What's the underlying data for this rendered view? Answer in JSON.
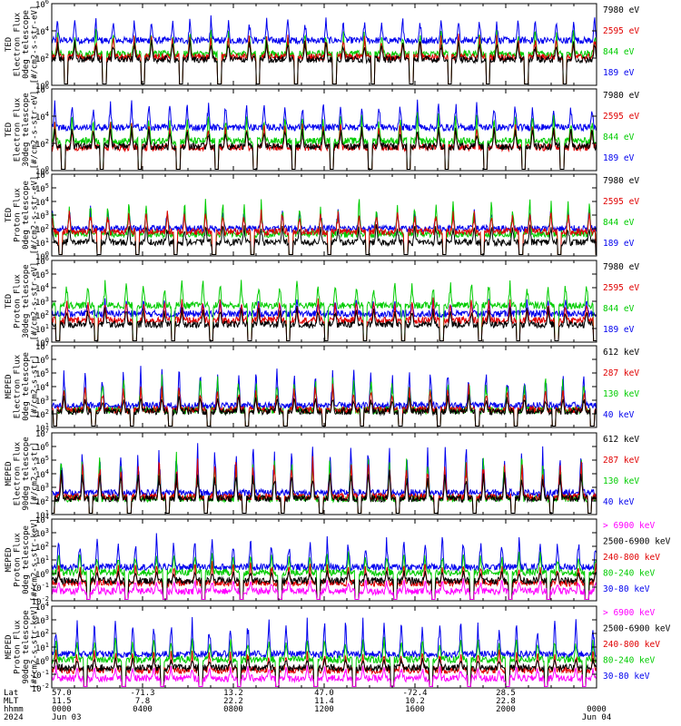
{
  "chart_data": [
    {
      "type": "line",
      "ylabel": [
        "TED",
        "Electron Flux",
        "0deg telescope",
        "[#/cm2-s-str-eV]"
      ],
      "ylim": [
        1,
        1000000
      ],
      "yscale": "log",
      "yticks": [
        {
          "base": "10",
          "exp": "0"
        },
        {
          "base": "10",
          "exp": "2"
        },
        {
          "base": "10",
          "exp": "4"
        },
        {
          "base": "10",
          "exp": "6"
        }
      ],
      "series": [
        {
          "name": "7980 eV",
          "color": "#000000",
          "level": 80,
          "peak_level": 3000
        },
        {
          "name": "2595 eV",
          "color": "#e00000",
          "level": 120,
          "peak_level": 8000
        },
        {
          "name": "844 eV",
          "color": "#00cc00",
          "level": 200,
          "peak_level": 20000
        },
        {
          "name": "189 eV",
          "color": "#0000ee",
          "level": 2000,
          "peak_level": 150000
        }
      ]
    },
    {
      "type": "line",
      "ylabel": [
        "TED",
        "Electron Flux",
        "30deg telescope",
        "[#/cm2-s-str-eV]"
      ],
      "ylim": [
        1,
        1000000
      ],
      "yscale": "log",
      "yticks": [
        {
          "base": "10",
          "exp": "0"
        },
        {
          "base": "10",
          "exp": "2"
        },
        {
          "base": "10",
          "exp": "4"
        },
        {
          "base": "10",
          "exp": "6"
        }
      ],
      "series": [
        {
          "name": "7980 eV",
          "color": "#000000",
          "level": 60,
          "peak_level": 2500
        },
        {
          "name": "2595 eV",
          "color": "#e00000",
          "level": 50,
          "peak_level": 6000
        },
        {
          "name": "844 eV",
          "color": "#00cc00",
          "level": 150,
          "peak_level": 20000
        },
        {
          "name": "189 eV",
          "color": "#0000ee",
          "level": 1500,
          "peak_level": 200000
        }
      ]
    },
    {
      "type": "line",
      "ylabel": [
        "TED",
        "Proton Flux",
        "0deg telescope",
        "[#/cm2-s-str-eV]"
      ],
      "ylim": [
        1,
        1000000
      ],
      "yscale": "log",
      "yticks": [
        {
          "base": "10",
          "exp": "0"
        },
        {
          "base": "10",
          "exp": "1"
        },
        {
          "base": "10",
          "exp": "2"
        },
        {
          "base": "10",
          "exp": "3"
        },
        {
          "base": "10",
          "exp": "4"
        },
        {
          "base": "10",
          "exp": "5"
        },
        {
          "base": "10",
          "exp": "6"
        }
      ],
      "series": [
        {
          "name": "7980 eV",
          "color": "#000000",
          "level": 10,
          "peak_level": 300
        },
        {
          "name": "2595 eV",
          "color": "#e00000",
          "level": 60,
          "peak_level": 3000
        },
        {
          "name": "844 eV",
          "color": "#00cc00",
          "level": 40,
          "peak_level": 30000
        },
        {
          "name": "189 eV",
          "color": "#0000ee",
          "level": 100,
          "peak_level": 5000
        }
      ]
    },
    {
      "type": "line",
      "ylabel": [
        "TED",
        "Proton Flux",
        "30deg telescope",
        "[#/cm2-s-str-eV]"
      ],
      "ylim": [
        1,
        1000000
      ],
      "yscale": "log",
      "yticks": [
        {
          "base": "10",
          "exp": "0"
        },
        {
          "base": "10",
          "exp": "1"
        },
        {
          "base": "10",
          "exp": "2"
        },
        {
          "base": "10",
          "exp": "3"
        },
        {
          "base": "10",
          "exp": "4"
        },
        {
          "base": "10",
          "exp": "5"
        },
        {
          "base": "10",
          "exp": "6"
        }
      ],
      "series": [
        {
          "name": "7980 eV",
          "color": "#000000",
          "level": 20,
          "peak_level": 500
        },
        {
          "name": "2595 eV",
          "color": "#e00000",
          "level": 40,
          "peak_level": 2000
        },
        {
          "name": "844 eV",
          "color": "#00cc00",
          "level": 500,
          "peak_level": 50000
        },
        {
          "name": "189 eV",
          "color": "#0000ee",
          "level": 120,
          "peak_level": 2000
        }
      ]
    },
    {
      "type": "line",
      "ylabel": [
        "MEPED",
        "Electron Flux",
        "0deg telescope",
        "[#/cm2-s-str]"
      ],
      "ylim": [
        10,
        10000000
      ],
      "yscale": "log",
      "yticks": [
        {
          "base": "10",
          "exp": "1"
        },
        {
          "base": "10",
          "exp": "2"
        },
        {
          "base": "10",
          "exp": "3"
        },
        {
          "base": "10",
          "exp": "4"
        },
        {
          "base": "10",
          "exp": "5"
        },
        {
          "base": "10",
          "exp": "6"
        },
        {
          "base": "10",
          "exp": "7"
        }
      ],
      "series": [
        {
          "name": "612 keV",
          "color": "#000000",
          "level": 150,
          "peak_level": 3000
        },
        {
          "name": "287 keV",
          "color": "#e00000",
          "level": 200,
          "peak_level": 20000
        },
        {
          "name": "130 keV",
          "color": "#00cc00",
          "level": 180,
          "peak_level": 100000
        },
        {
          "name": "40 keV",
          "color": "#0000ee",
          "level": 400,
          "peak_level": 500000
        }
      ]
    },
    {
      "type": "line",
      "ylabel": [
        "MEPED",
        "Electron Flux",
        "90deg telescope",
        "[#/cm2-s-str]"
      ],
      "ylim": [
        10,
        10000000
      ],
      "yscale": "log",
      "yticks": [
        {
          "base": "10",
          "exp": "1"
        },
        {
          "base": "10",
          "exp": "2"
        },
        {
          "base": "10",
          "exp": "3"
        },
        {
          "base": "10",
          "exp": "4"
        },
        {
          "base": "10",
          "exp": "5"
        },
        {
          "base": "10",
          "exp": "6"
        },
        {
          "base": "10",
          "exp": "7"
        }
      ],
      "series": [
        {
          "name": "612 keV",
          "color": "#000000",
          "level": 150,
          "peak_level": 30000
        },
        {
          "name": "287 keV",
          "color": "#e00000",
          "level": 200,
          "peak_level": 200000
        },
        {
          "name": "130 keV",
          "color": "#00cc00",
          "level": 150,
          "peak_level": 500000
        },
        {
          "name": "40 keV",
          "color": "#0000ee",
          "level": 400,
          "peak_level": 3000000
        }
      ]
    },
    {
      "type": "line",
      "ylabel": [
        "MEPED",
        "Proton Flux",
        "0deg telescope",
        "[#/cm2-s-str-keV]"
      ],
      "ylim": [
        0.01,
        10000
      ],
      "yscale": "log",
      "yticks": [
        {
          "base": "10",
          "exp": "-2"
        },
        {
          "base": "10",
          "exp": "-1"
        },
        {
          "base": "10",
          "exp": "0"
        },
        {
          "base": "10",
          "exp": "1"
        },
        {
          "base": "10",
          "exp": "2"
        },
        {
          "base": "10",
          "exp": "3"
        },
        {
          "base": "10",
          "exp": "4"
        }
      ],
      "series": [
        {
          "name": "> 6900 keV",
          "color": "#ff00ff",
          "level": 0.05,
          "peak_level": 0.5
        },
        {
          "name": "2500-6900 keV",
          "color": "#000000",
          "level": 0.3,
          "peak_level": 2
        },
        {
          "name": "240-800 keV",
          "color": "#e00000",
          "level": 0.2,
          "peak_level": 10
        },
        {
          "name": "80-240 keV",
          "color": "#00cc00",
          "level": 1.2,
          "peak_level": 50
        },
        {
          "name": "30-80 keV",
          "color": "#0000ee",
          "level": 3,
          "peak_level": 1000
        }
      ]
    },
    {
      "type": "line",
      "ylabel": [
        "MEPED",
        "Proton Flux",
        "90deg telescope",
        "[#/cm2-s-str-keV]"
      ],
      "ylim": [
        0.01,
        10000
      ],
      "yscale": "log",
      "yticks": [
        {
          "base": "10",
          "exp": "-2"
        },
        {
          "base": "10",
          "exp": "-1"
        },
        {
          "base": "10",
          "exp": "0"
        },
        {
          "base": "10",
          "exp": "1"
        },
        {
          "base": "10",
          "exp": "2"
        },
        {
          "base": "10",
          "exp": "3"
        },
        {
          "base": "10",
          "exp": "4"
        }
      ],
      "series": [
        {
          "name": "> 6900 keV",
          "color": "#ff00ff",
          "level": 0.05,
          "peak_level": 0.5
        },
        {
          "name": "2500-6900 keV",
          "color": "#000000",
          "level": 0.3,
          "peak_level": 2
        },
        {
          "name": "240-800 keV",
          "color": "#e00000",
          "level": 0.2,
          "peak_level": 10
        },
        {
          "name": "80-240 keV",
          "color": "#00cc00",
          "level": 1.2,
          "peak_level": 100
        },
        {
          "name": "30-80 keV",
          "color": "#0000ee",
          "level": 3,
          "peak_level": 2000
        }
      ]
    }
  ],
  "time_axis": {
    "xlim": [
      0,
      24
    ],
    "passes_per_day": 14.2,
    "row_labels": [
      "Lat",
      "MLT",
      "hhmm",
      "2024"
    ],
    "ticks": [
      {
        "x": 0,
        "lat": "57.0",
        "mlt": "11.5",
        "hhmm": "0000",
        "date": "Jun 03"
      },
      {
        "x": 4,
        "lat": "-71.3",
        "mlt": "7.8",
        "hhmm": "0400",
        "date": ""
      },
      {
        "x": 8,
        "lat": "13.2",
        "mlt": "22.2",
        "hhmm": "0800",
        "date": ""
      },
      {
        "x": 12,
        "lat": "47.0",
        "mlt": "11.4",
        "hhmm": "1200",
        "date": ""
      },
      {
        "x": 16,
        "lat": "-72.4",
        "mlt": "10.2",
        "hhmm": "1600",
        "date": ""
      },
      {
        "x": 20,
        "lat": "28.5",
        "mlt": "22.8",
        "hhmm": "2000",
        "date": ""
      },
      {
        "x": 24,
        "lat": "",
        "mlt": "",
        "hhmm": "0000",
        "date": "Jun 04"
      }
    ]
  }
}
